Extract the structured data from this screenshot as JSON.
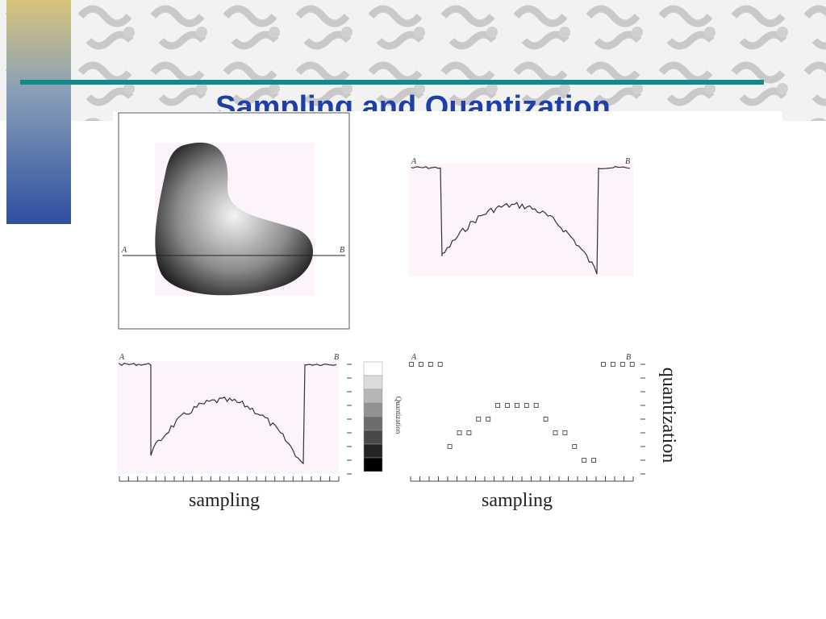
{
  "slide": {
    "title": "Sampling and Quantization"
  },
  "figures": [
    {
      "label_a": "A",
      "label_b": "B"
    },
    {
      "label_a": "A",
      "label_b": "B"
    },
    {
      "label_a": "A",
      "label_b": "B",
      "x_label": "sampling",
      "scale_label": "Quantization"
    },
    {
      "label_a": "A",
      "label_b": "B",
      "x_label": "sampling",
      "y_label": "quantization"
    }
  ]
}
